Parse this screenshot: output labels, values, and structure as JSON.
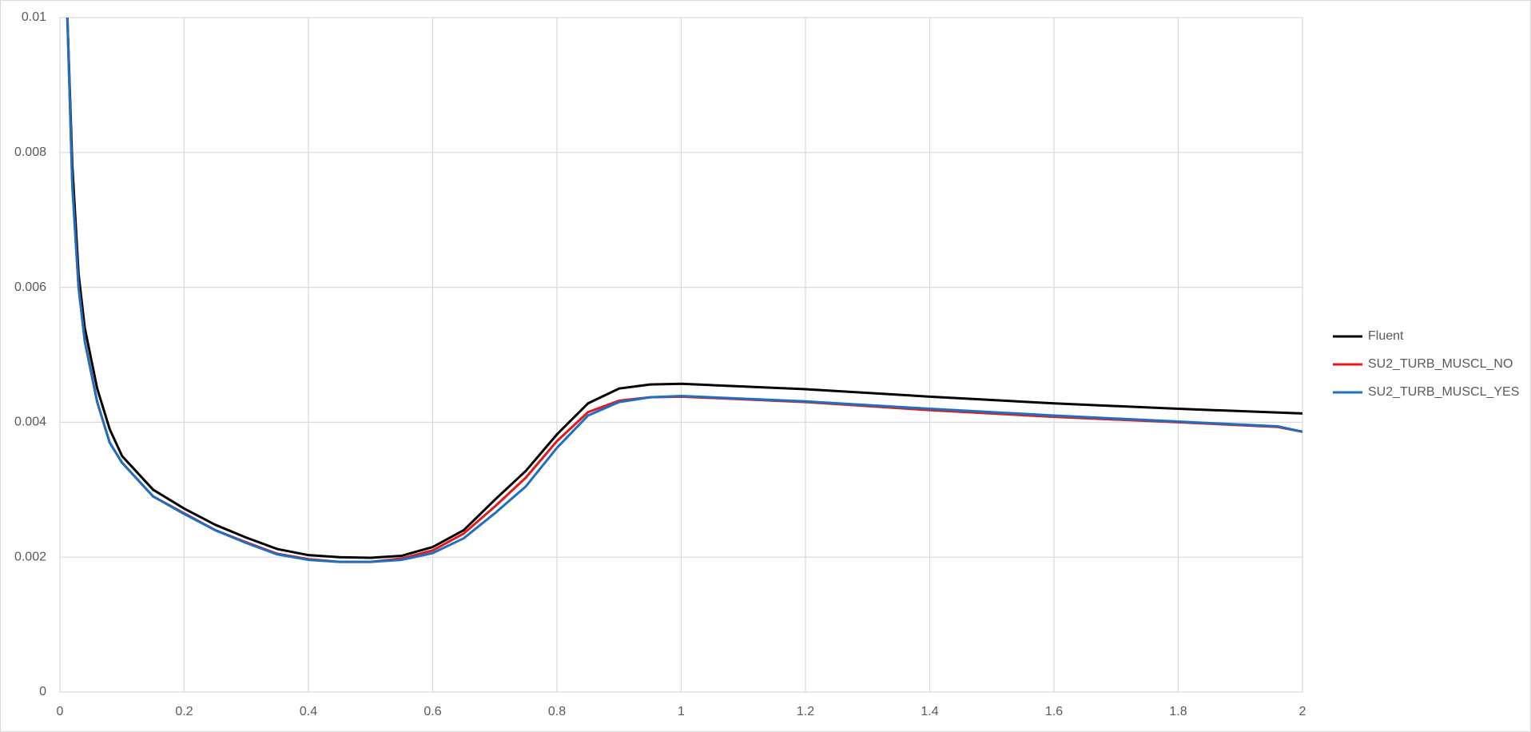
{
  "chart_data": {
    "type": "line",
    "xlim": [
      0,
      2
    ],
    "xticks": [
      0,
      0.2,
      0.4,
      0.6,
      0.8,
      1,
      1.2,
      1.4,
      1.6,
      1.8,
      2
    ],
    "ylim": [
      0,
      0.01
    ],
    "yticks": [
      0,
      0.002,
      0.004,
      0.006,
      0.008,
      0.01
    ],
    "grid": true,
    "legend": "right",
    "series": [
      {
        "name": "Fluent",
        "color": "#000000",
        "x": [
          0.012,
          0.02,
          0.03,
          0.04,
          0.06,
          0.08,
          0.1,
          0.15,
          0.2,
          0.25,
          0.3,
          0.35,
          0.4,
          0.45,
          0.5,
          0.55,
          0.6,
          0.65,
          0.7,
          0.75,
          0.8,
          0.85,
          0.9,
          0.95,
          1.0,
          1.2,
          1.4,
          1.6,
          1.8,
          2.0
        ],
        "values": [
          0.01,
          0.0078,
          0.0062,
          0.0054,
          0.0045,
          0.0039,
          0.0035,
          0.003,
          0.00272,
          0.00248,
          0.00229,
          0.00212,
          0.00203,
          0.002,
          0.00199,
          0.00202,
          0.00215,
          0.0024,
          0.00285,
          0.00328,
          0.00382,
          0.00428,
          0.0045,
          0.00456,
          0.00457,
          0.00449,
          0.00438,
          0.00428,
          0.0042,
          0.00413
        ]
      },
      {
        "name": "SU2_TURB_MUSCL_NO",
        "color": "#e31a1c",
        "x": [
          0.012,
          0.02,
          0.03,
          0.04,
          0.06,
          0.08,
          0.1,
          0.15,
          0.2,
          0.25,
          0.3,
          0.35,
          0.4,
          0.45,
          0.5,
          0.55,
          0.6,
          0.65,
          0.7,
          0.75,
          0.8,
          0.85,
          0.9,
          0.95,
          1.0,
          1.2,
          1.4,
          1.6,
          1.8,
          1.96,
          2.0
        ],
        "values": [
          0.01,
          0.0075,
          0.006,
          0.0052,
          0.0043,
          0.0037,
          0.0034,
          0.0029,
          0.00265,
          0.0024,
          0.00222,
          0.00205,
          0.00197,
          0.00193,
          0.00193,
          0.00198,
          0.0021,
          0.00235,
          0.00275,
          0.00318,
          0.00372,
          0.00415,
          0.00432,
          0.00437,
          0.00438,
          0.0043,
          0.00418,
          0.00408,
          0.004,
          0.00393,
          0.00386
        ]
      },
      {
        "name": "SU2_TURB_MUSCL_YES",
        "color": "#1f6fc0",
        "x": [
          0.012,
          0.02,
          0.03,
          0.04,
          0.06,
          0.08,
          0.1,
          0.15,
          0.2,
          0.25,
          0.3,
          0.35,
          0.4,
          0.45,
          0.5,
          0.55,
          0.6,
          0.65,
          0.7,
          0.75,
          0.8,
          0.85,
          0.9,
          0.95,
          1.0,
          1.2,
          1.4,
          1.6,
          1.8,
          1.96,
          2.0
        ],
        "values": [
          0.01,
          0.0075,
          0.006,
          0.0052,
          0.0043,
          0.0037,
          0.0034,
          0.0029,
          0.00264,
          0.0024,
          0.00221,
          0.00204,
          0.00196,
          0.00193,
          0.00193,
          0.00196,
          0.00206,
          0.00228,
          0.00265,
          0.00305,
          0.00362,
          0.0041,
          0.0043,
          0.00437,
          0.00439,
          0.00431,
          0.0042,
          0.0041,
          0.00401,
          0.00394,
          0.00386
        ]
      }
    ]
  }
}
